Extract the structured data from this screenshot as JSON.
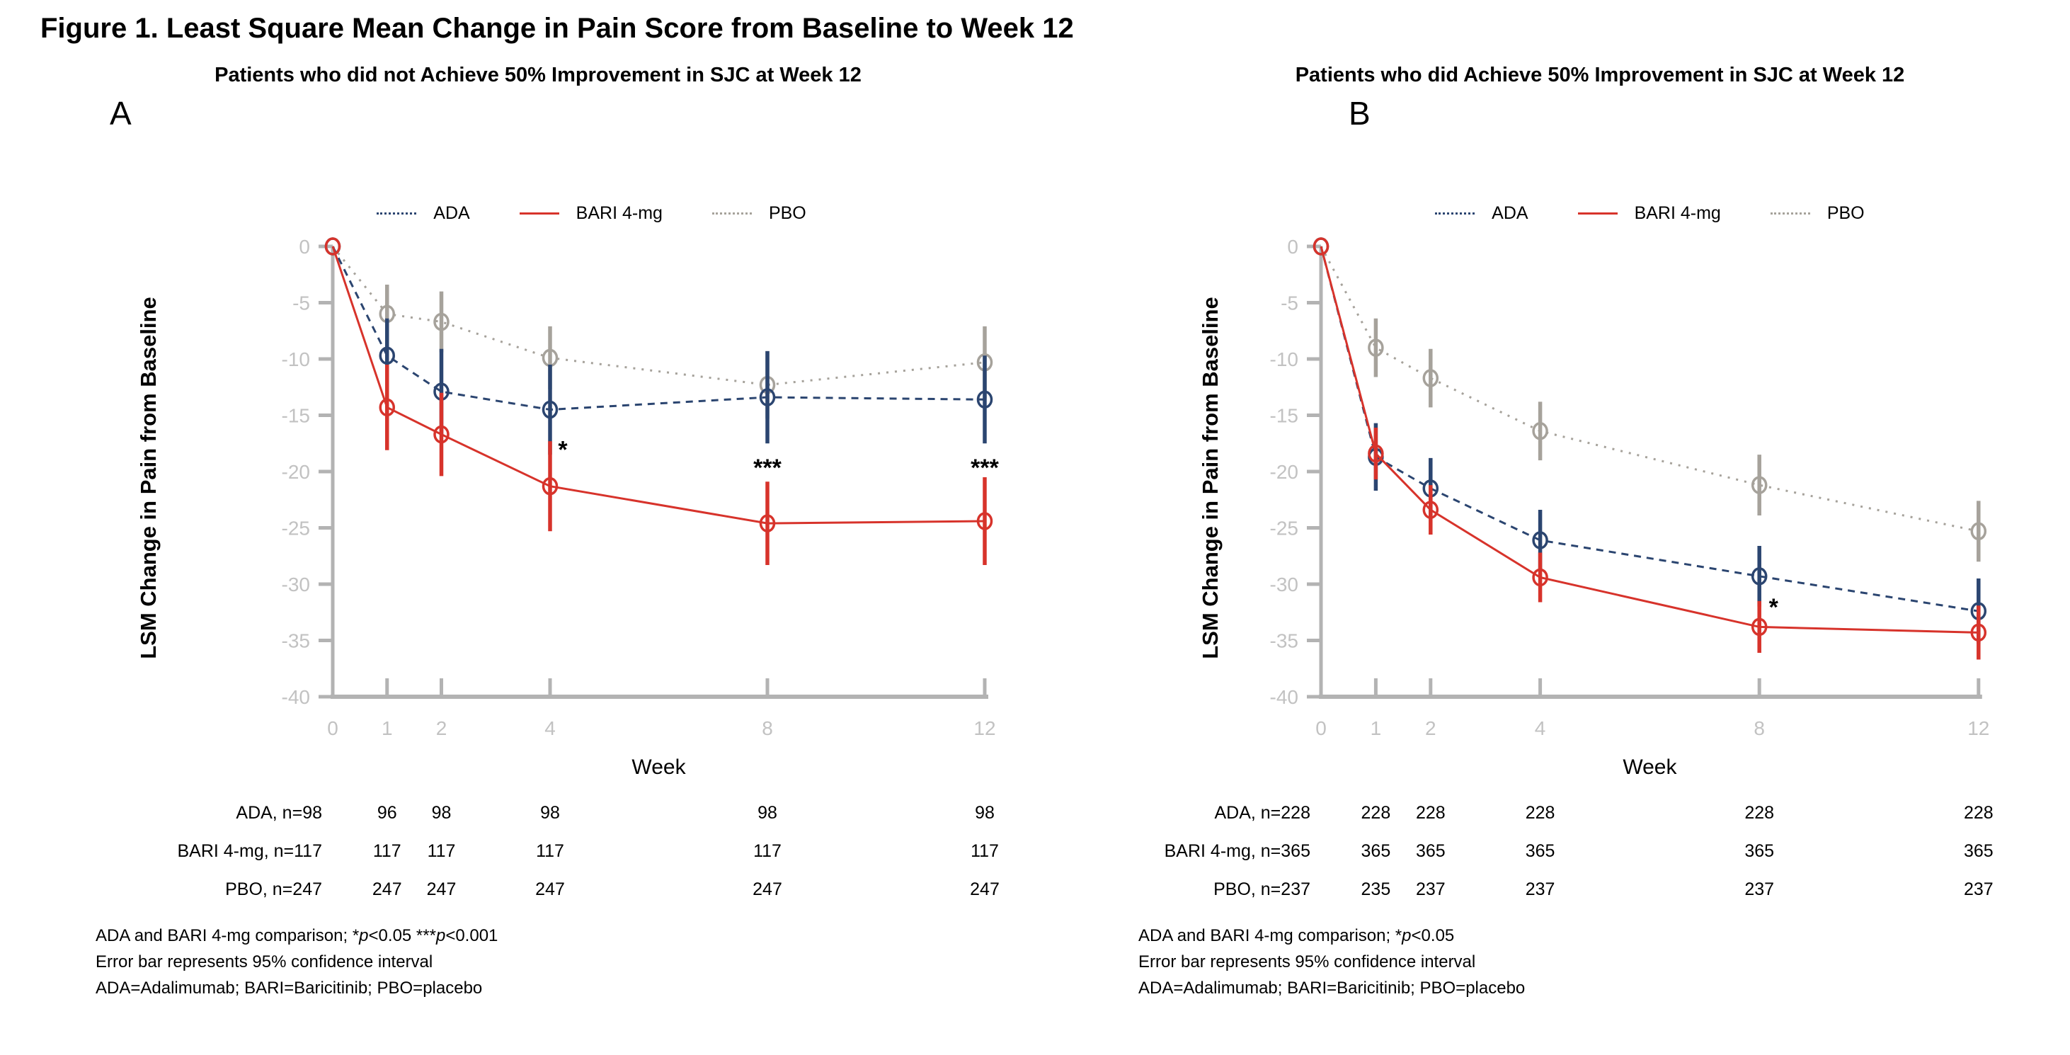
{
  "figure_title": "Figure 1. Least Square Mean Change in Pain Score from Baseline to Week 12",
  "colors": {
    "ada": "#2B4570",
    "bari": "#D7332B",
    "pbo": "#A6A29B",
    "axis": "#B3B3B3",
    "tick_label": "#C2C2C2",
    "text": "#000000"
  },
  "panels": [
    {
      "letter": "A",
      "title": "Patients who did not Achieve 50% Improvement in SJC at Week 12",
      "table": {
        "rows": [
          {
            "label": "ADA, n=98",
            "values": [
              "96",
              "98",
              "98",
              "98",
              "98"
            ]
          },
          {
            "label": "BARI 4-mg, n=117",
            "values": [
              "117",
              "117",
              "117",
              "117",
              "117"
            ]
          },
          {
            "label": "PBO, n=247",
            "values": [
              "247",
              "247",
              "247",
              "247",
              "247"
            ]
          }
        ]
      },
      "footnotes": [
        {
          "segments": [
            {
              "text": "ADA and BARI 4-mg comparison; *"
            },
            {
              "text": "p",
              "italic": true
            },
            {
              "text": "<0.05 ***"
            },
            {
              "text": "p",
              "italic": true
            },
            {
              "text": "<0.001"
            }
          ]
        },
        {
          "segments": [
            {
              "text": "Error bar represents 95% confidence interval"
            }
          ]
        },
        {
          "segments": [
            {
              "text": "ADA=Adalimumab; BARI=Baricitinib; PBO=placebo"
            }
          ]
        }
      ]
    },
    {
      "letter": "B",
      "title": "Patients who did Achieve 50% Improvement in SJC at Week 12",
      "table": {
        "rows": [
          {
            "label": "ADA, n=228",
            "values": [
              "228",
              "228",
              "228",
              "228",
              "228"
            ]
          },
          {
            "label": "BARI 4-mg, n=365",
            "values": [
              "365",
              "365",
              "365",
              "365",
              "365"
            ]
          },
          {
            "label": "PBO, n=237",
            "values": [
              "235",
              "237",
              "237",
              "237",
              "237"
            ]
          }
        ]
      },
      "footnotes": [
        {
          "segments": [
            {
              "text": "ADA and BARI 4-mg comparison; *"
            },
            {
              "text": "p",
              "italic": true
            },
            {
              "text": "<0.05"
            }
          ]
        },
        {
          "segments": [
            {
              "text": "Error bar represents 95% confidence interval"
            }
          ]
        },
        {
          "segments": [
            {
              "text": "ADA=Adalimumab; BARI=Baricitinib; PBO=placebo"
            }
          ]
        }
      ]
    }
  ],
  "chart_data": [
    {
      "type": "line",
      "panel": "A",
      "title": "Patients who did not Achieve 50% Improvement in SJC at Week 12",
      "xlabel": "Week",
      "ylabel": "LSM Change in Pain from Baseline",
      "x": [
        0,
        1,
        2,
        4,
        8,
        12
      ],
      "xticks": [
        0,
        1,
        2,
        4,
        8,
        12
      ],
      "yticks": [
        0,
        -5,
        -10,
        -15,
        -20,
        -25,
        -30,
        -35,
        -40
      ],
      "ylim": [
        -40,
        0
      ],
      "grid": false,
      "legend_position": "top",
      "series": [
        {
          "name": "ADA",
          "color": "#2B4570",
          "line_style": "dashed",
          "values": [
            0,
            -9.7,
            -12.9,
            -14.5,
            -13.4,
            -13.6
          ],
          "ci_half": [
            0,
            3.3,
            3.8,
            4.0,
            4.1,
            3.9
          ]
        },
        {
          "name": "BARI 4-mg",
          "color": "#D7332B",
          "line_style": "solid",
          "values": [
            0,
            -14.3,
            -16.7,
            -21.3,
            -24.6,
            -24.4
          ],
          "ci_half": [
            0,
            3.8,
            3.7,
            4.0,
            3.7,
            3.9
          ]
        },
        {
          "name": "PBO",
          "color": "#A6A29B",
          "line_style": "dotted",
          "values": [
            0,
            -6.0,
            -6.7,
            -9.9,
            -12.3,
            -10.3
          ],
          "ci_half": [
            0,
            2.6,
            2.7,
            2.8,
            3.0,
            3.2
          ]
        }
      ],
      "annotations": [
        {
          "text": "*",
          "week": 4,
          "value": -17.7,
          "dx": 18
        },
        {
          "text": "***",
          "week": 8,
          "value": -19.3,
          "dx": 0
        },
        {
          "text": "***",
          "week": 12,
          "value": -19.3,
          "dx": 0
        }
      ]
    },
    {
      "type": "line",
      "panel": "B",
      "title": "Patients who did Achieve 50% Improvement in SJC at Week 12",
      "xlabel": "Week",
      "ylabel": "LSM Change in Pain from Baseline",
      "x": [
        0,
        1,
        2,
        4,
        8,
        12
      ],
      "xticks": [
        0,
        1,
        2,
        4,
        8,
        12
      ],
      "yticks": [
        0,
        -5,
        -10,
        -15,
        -20,
        -25,
        -30,
        -35,
        -40
      ],
      "ylim": [
        -40,
        0
      ],
      "grid": false,
      "legend_position": "top",
      "series": [
        {
          "name": "ADA",
          "color": "#2B4570",
          "line_style": "dashed",
          "values": [
            0,
            -18.7,
            -21.5,
            -26.1,
            -29.3,
            -32.4
          ],
          "ci_half": [
            0,
            3.0,
            2.7,
            2.7,
            2.7,
            2.9
          ]
        },
        {
          "name": "BARI 4-mg",
          "color": "#D7332B",
          "line_style": "solid",
          "values": [
            0,
            -18.4,
            -23.4,
            -29.4,
            -33.8,
            -34.3
          ],
          "ci_half": [
            0,
            2.3,
            2.2,
            2.2,
            2.3,
            2.4
          ]
        },
        {
          "name": "PBO",
          "color": "#A6A29B",
          "line_style": "dotted",
          "values": [
            0,
            -9.0,
            -11.7,
            -16.4,
            -21.2,
            -25.3
          ],
          "ci_half": [
            0,
            2.6,
            2.6,
            2.6,
            2.7,
            2.7
          ]
        }
      ],
      "annotations": [
        {
          "text": "*",
          "week": 8,
          "value": -31.7,
          "dx": 20
        }
      ]
    }
  ]
}
